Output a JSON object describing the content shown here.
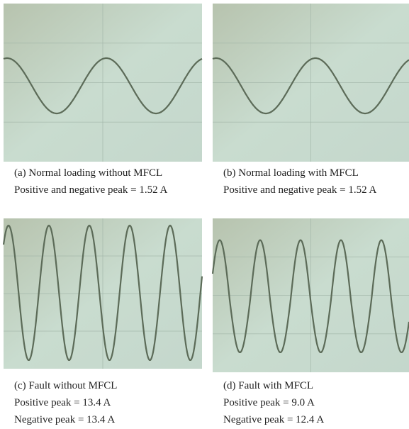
{
  "panels": [
    {
      "caption": [
        "(a) Normal loading without MFCL",
        "Positive and negative peak = 1.52 A"
      ]
    },
    {
      "caption": [
        "(b) Normal loading with MFCL",
        "Positive and negative peak = 1.52 A"
      ]
    },
    {
      "caption": [
        "(c) Fault without MFCL",
        "Positive peak = 13.4 A",
        "Negative peak = 13.4 A"
      ]
    },
    {
      "caption": [
        "(d) Fault with MFCL",
        "Positive peak = 9.0 A",
        "Negative peak = 12.4 A"
      ]
    }
  ]
}
